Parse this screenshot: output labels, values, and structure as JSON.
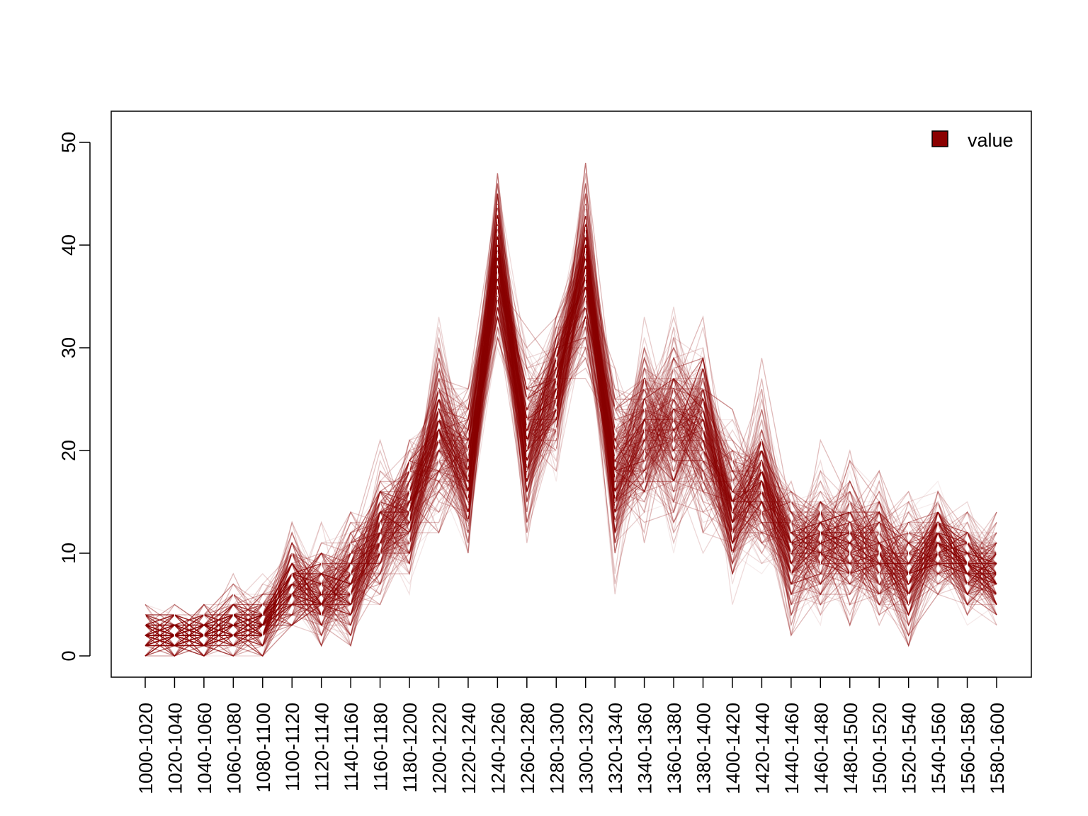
{
  "chart_data": {
    "type": "line",
    "title": "",
    "xlabel": "",
    "ylabel": "",
    "ylim": [
      0,
      50
    ],
    "y_ticks": [
      0,
      10,
      20,
      30,
      40,
      50
    ],
    "categories": [
      "1000-1020",
      "1020-1040",
      "1040-1060",
      "1060-1080",
      "1080-1100",
      "1100-1120",
      "1120-1140",
      "1140-1160",
      "1160-1180",
      "1180-1200",
      "1200-1220",
      "1220-1240",
      "1240-1260",
      "1260-1280",
      "1280-1300",
      "1300-1320",
      "1320-1340",
      "1340-1360",
      "1360-1380",
      "1380-1400",
      "1400-1420",
      "1420-1440",
      "1440-1460",
      "1460-1480",
      "1480-1500",
      "1500-1520",
      "1520-1540",
      "1540-1560",
      "1560-1580",
      "1580-1600"
    ],
    "series_summary": {
      "name": "value",
      "count": 300,
      "color": "#8b0000",
      "mean": [
        2,
        2,
        2,
        3,
        3,
        7,
        6,
        7,
        12,
        14,
        22,
        18,
        39,
        21,
        26,
        38,
        18,
        22,
        22,
        22,
        14,
        17,
        10,
        11,
        11,
        10,
        8,
        11,
        9,
        8
      ],
      "min": [
        0,
        0,
        0,
        0,
        0,
        3,
        1,
        1,
        5,
        6,
        12,
        4,
        27,
        11,
        12,
        25,
        6,
        9,
        9,
        10,
        5,
        8,
        2,
        3,
        3,
        0,
        1,
        6,
        3,
        2
      ],
      "max": [
        8,
        7,
        7,
        10,
        9,
        17,
        16,
        19,
        22,
        25,
        37,
        26,
        50,
        35,
        33,
        51,
        32,
        33,
        37,
        36,
        27,
        29,
        23,
        21,
        23,
        18,
        19,
        20,
        17,
        16
      ]
    },
    "legend": {
      "entries": [
        "value"
      ],
      "position": "top-right"
    },
    "grid": false,
    "colors": {
      "line": "#8b0000",
      "legend_fill": "#8b0000",
      "axis": "#000000"
    }
  }
}
